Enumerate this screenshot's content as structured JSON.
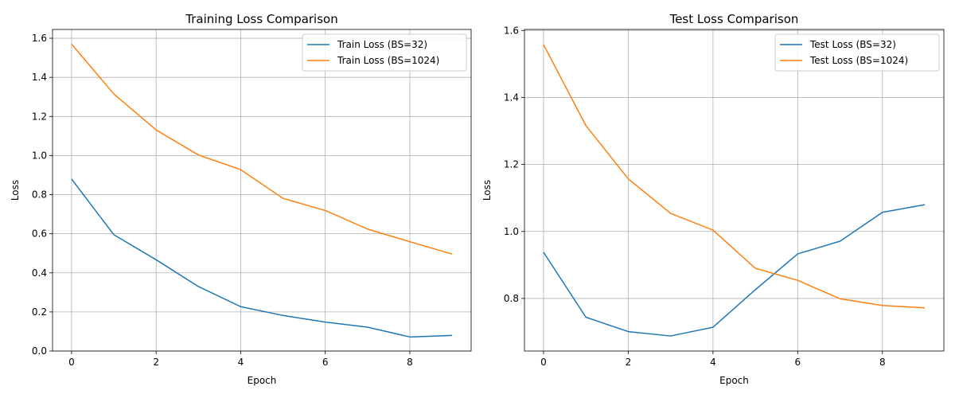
{
  "chart_data": [
    {
      "type": "line",
      "title": "Training Loss Comparison",
      "xlabel": "Epoch",
      "ylabel": "Loss",
      "x": [
        0,
        1,
        2,
        3,
        4,
        5,
        6,
        7,
        8,
        9
      ],
      "xticks": [
        "0",
        "2",
        "4",
        "6",
        "8"
      ],
      "yticks": [
        "0.0",
        "0.2",
        "0.4",
        "0.6",
        "0.8",
        "1.0",
        "1.2",
        "1.4",
        "1.6"
      ],
      "xlim": [
        -0.45,
        9.45
      ],
      "ylim": [
        0,
        1.645
      ],
      "grid": true,
      "legend": "upper right",
      "series": [
        {
          "name": "Train Loss (BS=32)",
          "color": "#1f77b4",
          "values": [
            0.88,
            0.595,
            0.467,
            0.33,
            0.227,
            0.182,
            0.148,
            0.122,
            0.072,
            0.08
          ]
        },
        {
          "name": "Train Loss (BS=1024)",
          "color": "#ff7f0e",
          "values": [
            1.57,
            1.315,
            1.131,
            1.003,
            0.928,
            0.781,
            0.719,
            0.624,
            0.559,
            0.496
          ]
        }
      ]
    },
    {
      "type": "line",
      "title": "Test Loss Comparison",
      "xlabel": "Epoch",
      "ylabel": "Loss",
      "x": [
        0,
        1,
        2,
        3,
        4,
        5,
        6,
        7,
        8,
        9
      ],
      "xticks": [
        "0",
        "2",
        "4",
        "6",
        "8"
      ],
      "yticks": [
        "0.8",
        "1.0",
        "1.2",
        "1.4",
        "1.6"
      ],
      "xlim": [
        -0.45,
        9.45
      ],
      "ylim": [
        0.643,
        1.603
      ],
      "grid": true,
      "legend": "upper right",
      "series": [
        {
          "name": "Test Loss (BS=32)",
          "color": "#1f77b4",
          "values": [
            0.938,
            0.744,
            0.701,
            0.688,
            0.714,
            0.826,
            0.933,
            0.971,
            1.057,
            1.08
          ]
        },
        {
          "name": "Test Loss (BS=1024)",
          "color": "#ff7f0e",
          "values": [
            1.558,
            1.316,
            1.157,
            1.054,
            1.004,
            0.89,
            0.854,
            0.799,
            0.779,
            0.772
          ]
        }
      ]
    }
  ]
}
